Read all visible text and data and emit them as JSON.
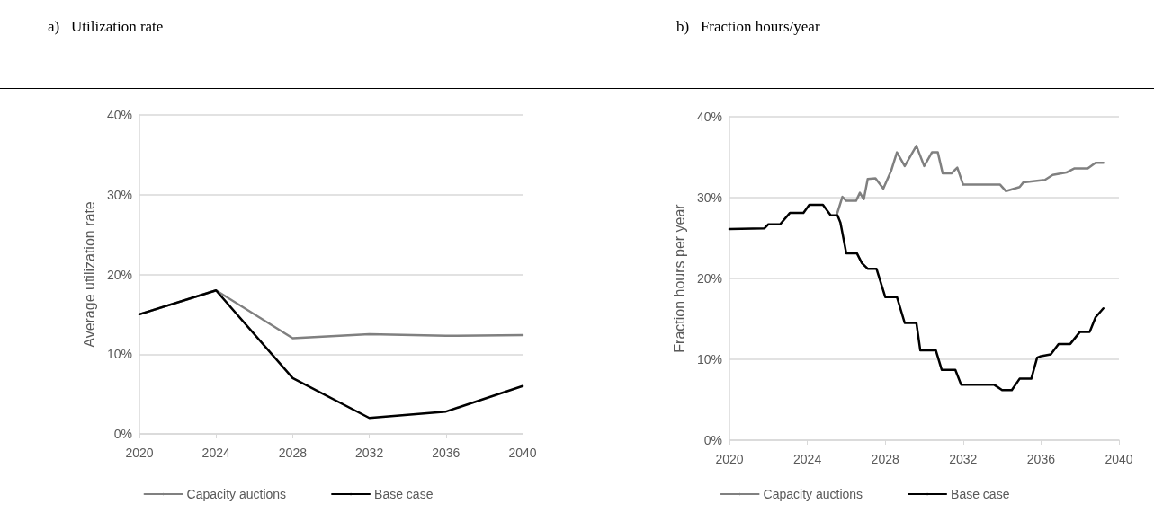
{
  "chart_data": [
    {
      "type": "line",
      "title": "a)   Utilization rate",
      "ylabel": "Average utilization rate",
      "x": [
        2020,
        2024,
        2028,
        2032,
        2036,
        2040
      ],
      "xlim": [
        2020,
        2040
      ],
      "xticks": [
        2020,
        2024,
        2028,
        2032,
        2036,
        2040
      ],
      "ylim": [
        0,
        40
      ],
      "yticks": [
        {
          "value": 0,
          "label": "0%"
        },
        {
          "value": 10,
          "label": "10%"
        },
        {
          "value": 20,
          "label": "20%"
        },
        {
          "value": 30,
          "label": "30%"
        },
        {
          "value": 40,
          "label": "40%"
        }
      ],
      "grid": "y",
      "legend": "bottom",
      "marker": "none",
      "line_style": "solid",
      "series": [
        {
          "name": "Capacity auctions",
          "color": "#808080",
          "values": [
            15,
            18,
            12,
            12.5,
            12.3,
            12.4
          ]
        },
        {
          "name": "Base case",
          "color": "#000000",
          "values": [
            15,
            18,
            7,
            2,
            2.8,
            6
          ]
        }
      ]
    },
    {
      "type": "line",
      "title": "b)   Fraction hours/year",
      "ylabel": "Fraction hours per year",
      "xlim": [
        2020,
        2040
      ],
      "xticks": [
        2020,
        2024,
        2028,
        2032,
        2036,
        2040
      ],
      "ylim": [
        0,
        40
      ],
      "yticks": [
        {
          "value": 0,
          "label": "0%"
        },
        {
          "value": 10,
          "label": "10%"
        },
        {
          "value": 20,
          "label": "20%"
        },
        {
          "value": 30,
          "label": "30%"
        },
        {
          "value": 40,
          "label": "40%"
        }
      ],
      "grid": "y",
      "legend": "bottom",
      "marker": "none",
      "line_style": "solid",
      "series": [
        {
          "name": "Capacity auctions",
          "color": "#808080",
          "x": [
            2025.5,
            2025.8,
            2026.0,
            2026.5,
            2026.7,
            2026.9,
            2027.1,
            2027.5,
            2027.9,
            2028.3,
            2028.6,
            2029.0,
            2029.6,
            2030.0,
            2030.4,
            2030.7,
            2030.95,
            2031.4,
            2031.7,
            2032.0,
            2033.9,
            2034.2,
            2034.9,
            2035.1,
            2036.2,
            2036.6,
            2037.3,
            2037.7,
            2038.4,
            2038.8,
            2039.2
          ],
          "values": [
            27.8,
            30.1,
            29.6,
            29.6,
            30.6,
            29.8,
            32.3,
            32.4,
            31.1,
            33.3,
            35.6,
            33.9,
            36.4,
            33.9,
            35.6,
            35.6,
            33.0,
            33.0,
            33.7,
            31.6,
            31.6,
            30.8,
            31.3,
            31.9,
            32.2,
            32.8,
            33.1,
            33.6,
            33.6,
            34.3,
            34.3
          ]
        },
        {
          "name": "Base case",
          "color": "#000000",
          "x": [
            2020,
            2021.8,
            2022.0,
            2022.6,
            2023.1,
            2023.8,
            2024.1,
            2024.8,
            2025.2,
            2025.55,
            2025.7,
            2026.0,
            2026.55,
            2026.8,
            2027.1,
            2027.55,
            2028.0,
            2028.6,
            2029.0,
            2029.6,
            2029.8,
            2030.6,
            2030.9,
            2031.6,
            2031.9,
            2033.6,
            2034.0,
            2034.5,
            2034.9,
            2035.5,
            2035.8,
            2036.0,
            2036.5,
            2036.9,
            2037.5,
            2038.0,
            2038.5,
            2038.8,
            2039.2
          ],
          "values": [
            26.1,
            26.2,
            26.7,
            26.7,
            28.1,
            28.1,
            29.1,
            29.1,
            27.8,
            27.8,
            26.9,
            23.1,
            23.1,
            21.9,
            21.2,
            21.2,
            17.7,
            17.7,
            14.5,
            14.5,
            11.1,
            11.1,
            8.7,
            8.7,
            6.85,
            6.85,
            6.2,
            6.2,
            7.6,
            7.6,
            10.2,
            10.4,
            10.6,
            11.9,
            11.9,
            13.4,
            13.4,
            15.2,
            16.3
          ]
        }
      ]
    }
  ]
}
